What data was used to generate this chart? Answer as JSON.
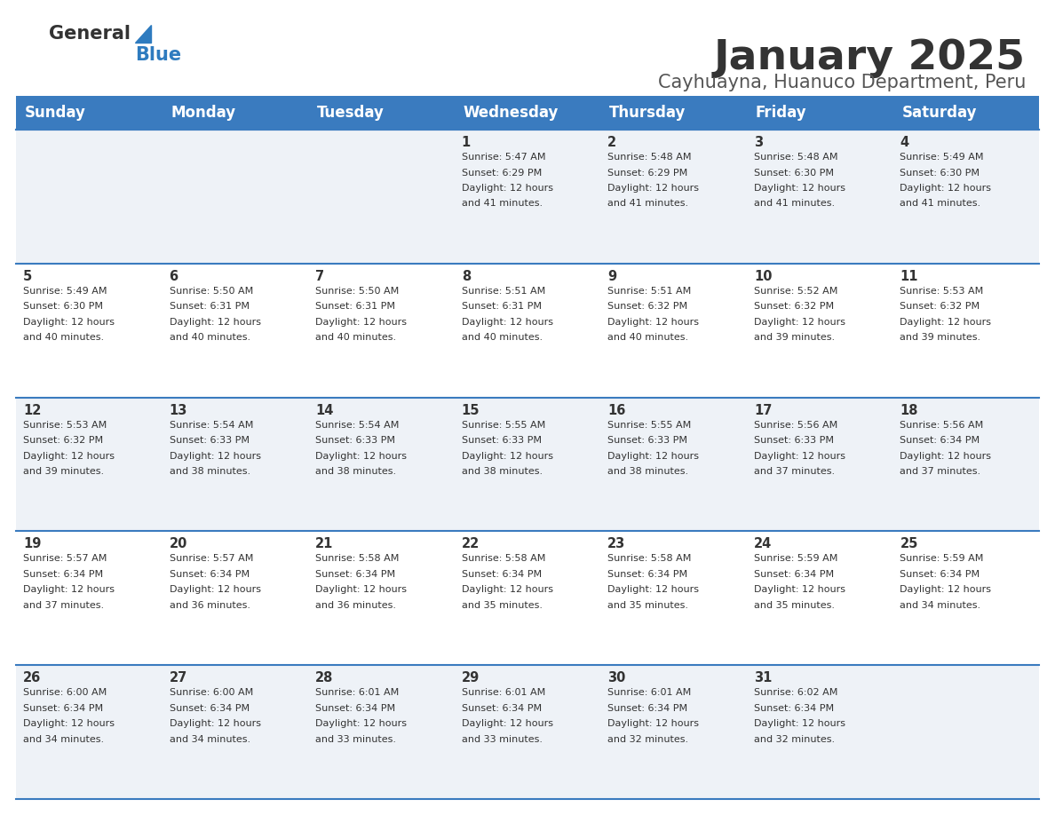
{
  "title": "January 2025",
  "subtitle": "Cayhuayna, Huanuco Department, Peru",
  "header_bg": "#3a7bbf",
  "header_text_color": "#ffffff",
  "cell_bg_even": "#eef2f7",
  "cell_bg_odd": "#ffffff",
  "row_line_color": "#3a7bbf",
  "text_color": "#333333",
  "days_of_week": [
    "Sunday",
    "Monday",
    "Tuesday",
    "Wednesday",
    "Thursday",
    "Friday",
    "Saturday"
  ],
  "calendar": [
    [
      "",
      "",
      "",
      "1",
      "2",
      "3",
      "4"
    ],
    [
      "5",
      "6",
      "7",
      "8",
      "9",
      "10",
      "11"
    ],
    [
      "12",
      "13",
      "14",
      "15",
      "16",
      "17",
      "18"
    ],
    [
      "19",
      "20",
      "21",
      "22",
      "23",
      "24",
      "25"
    ],
    [
      "26",
      "27",
      "28",
      "29",
      "30",
      "31",
      ""
    ]
  ],
  "sunrise_data": {
    "1": "5:47 AM",
    "2": "5:48 AM",
    "3": "5:48 AM",
    "4": "5:49 AM",
    "5": "5:49 AM",
    "6": "5:50 AM",
    "7": "5:50 AM",
    "8": "5:51 AM",
    "9": "5:51 AM",
    "10": "5:52 AM",
    "11": "5:53 AM",
    "12": "5:53 AM",
    "13": "5:54 AM",
    "14": "5:54 AM",
    "15": "5:55 AM",
    "16": "5:55 AM",
    "17": "5:56 AM",
    "18": "5:56 AM",
    "19": "5:57 AM",
    "20": "5:57 AM",
    "21": "5:58 AM",
    "22": "5:58 AM",
    "23": "5:58 AM",
    "24": "5:59 AM",
    "25": "5:59 AM",
    "26": "6:00 AM",
    "27": "6:00 AM",
    "28": "6:01 AM",
    "29": "6:01 AM",
    "30": "6:01 AM",
    "31": "6:02 AM"
  },
  "sunset_data": {
    "1": "6:29 PM",
    "2": "6:29 PM",
    "3": "6:30 PM",
    "4": "6:30 PM",
    "5": "6:30 PM",
    "6": "6:31 PM",
    "7": "6:31 PM",
    "8": "6:31 PM",
    "9": "6:32 PM",
    "10": "6:32 PM",
    "11": "6:32 PM",
    "12": "6:32 PM",
    "13": "6:33 PM",
    "14": "6:33 PM",
    "15": "6:33 PM",
    "16": "6:33 PM",
    "17": "6:33 PM",
    "18": "6:34 PM",
    "19": "6:34 PM",
    "20": "6:34 PM",
    "21": "6:34 PM",
    "22": "6:34 PM",
    "23": "6:34 PM",
    "24": "6:34 PM",
    "25": "6:34 PM",
    "26": "6:34 PM",
    "27": "6:34 PM",
    "28": "6:34 PM",
    "29": "6:34 PM",
    "30": "6:34 PM",
    "31": "6:34 PM"
  },
  "daylight_data": {
    "1": "41",
    "2": "41",
    "3": "41",
    "4": "41",
    "5": "40",
    "6": "40",
    "7": "40",
    "8": "40",
    "9": "40",
    "10": "39",
    "11": "39",
    "12": "39",
    "13": "38",
    "14": "38",
    "15": "38",
    "16": "38",
    "17": "37",
    "18": "37",
    "19": "37",
    "20": "36",
    "21": "36",
    "22": "35",
    "23": "35",
    "24": "35",
    "25": "34",
    "26": "34",
    "27": "34",
    "28": "33",
    "29": "33",
    "30": "32",
    "31": "32"
  },
  "title_fontsize": 34,
  "subtitle_fontsize": 15,
  "header_fontsize": 12,
  "day_number_fontsize": 10.5,
  "cell_text_fontsize": 8.0,
  "logo_general_fontsize": 15,
  "logo_blue_fontsize": 15
}
